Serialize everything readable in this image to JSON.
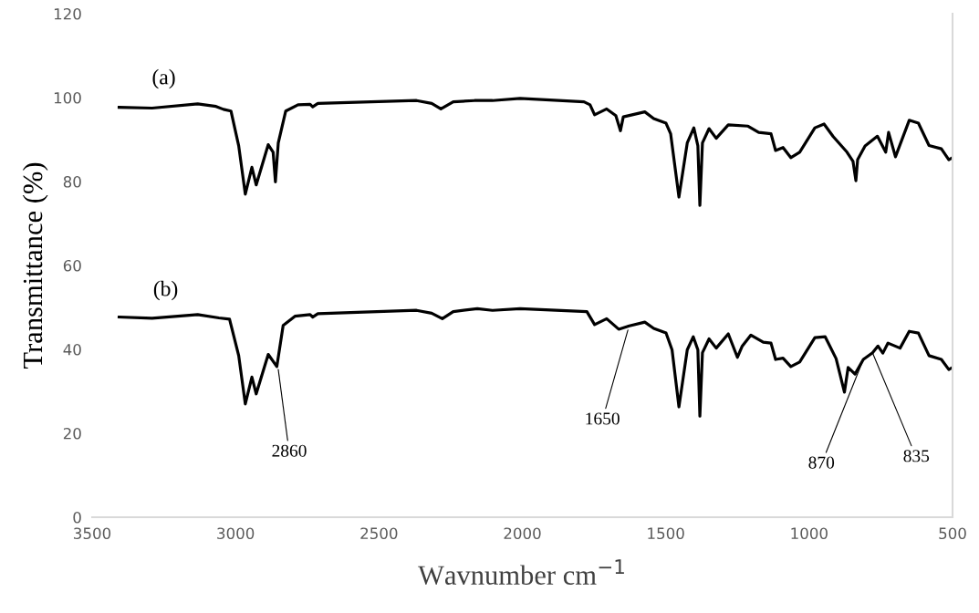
{
  "chart_data": {
    "type": "line",
    "xlabel": "Wavnumber cm$^{−1}$",
    "ylabel": "Transmittance (%)",
    "xlim": [
      3500,
      500
    ],
    "xticks": [
      3500,
      3000,
      2500,
      2000,
      1500,
      1000,
      500
    ],
    "ylim": [
      0,
      120
    ],
    "yticks": [
      0,
      20,
      40,
      60,
      80,
      100,
      120
    ],
    "grid": false,
    "legend": false,
    "marker": "none",
    "line_style": "solid",
    "series": [
      {
        "name": "(a)",
        "color": "#000000",
        "x": [
          3406,
          3291,
          3132,
          3068,
          3042,
          3016,
          2989,
          2966,
          2943,
          2928,
          2886,
          2869,
          2861,
          2851,
          2825,
          2782,
          2740,
          2731,
          2713,
          2369,
          2316,
          2284,
          2241,
          2167,
          2104,
          2008,
          1785,
          1764,
          1748,
          1706,
          1674,
          1658,
          1648,
          1573,
          1542,
          1499,
          1483,
          1454,
          1425,
          1402,
          1388,
          1381,
          1372,
          1349,
          1324,
          1282,
          1213,
          1176,
          1133,
          1117,
          1091,
          1064,
          1033,
          980,
          948,
          916,
          868,
          847,
          837,
          831,
          805,
          762,
          733,
          723,
          699,
          651,
          619,
          582,
          539,
          513,
          500
        ],
        "values": [
          97.7,
          97.5,
          98.5,
          97.9,
          97.2,
          96.8,
          88.5,
          77.0,
          83.4,
          79.2,
          88.8,
          87.0,
          79.9,
          89.2,
          96.8,
          98.3,
          98.4,
          97.8,
          98.6,
          99.3,
          98.6,
          97.3,
          99.0,
          99.3,
          99.3,
          99.8,
          99.0,
          98.3,
          95.9,
          97.3,
          95.7,
          92.1,
          95.4,
          96.6,
          95.0,
          93.9,
          91.4,
          76.3,
          89.2,
          92.8,
          88.5,
          74.3,
          89.2,
          92.6,
          90.3,
          93.5,
          93.2,
          91.7,
          91.4,
          87.4,
          88.1,
          85.7,
          87.0,
          92.8,
          93.7,
          90.7,
          87.0,
          84.8,
          80.2,
          85.2,
          88.5,
          90.8,
          87.0,
          91.7,
          85.9,
          94.6,
          93.9,
          88.6,
          87.8,
          85.2,
          85.7
        ]
      },
      {
        "name": "(b)",
        "color": "#000000",
        "x": [
          3406,
          3291,
          3132,
          3058,
          3021,
          2989,
          2966,
          2943,
          2928,
          2886,
          2856,
          2834,
          2793,
          2740,
          2731,
          2713,
          2369,
          2316,
          2279,
          2241,
          2157,
          2104,
          2008,
          1775,
          1748,
          1706,
          1664,
          1627,
          1573,
          1542,
          1499,
          1478,
          1454,
          1425,
          1404,
          1388,
          1381,
          1372,
          1349,
          1324,
          1282,
          1250,
          1234,
          1203,
          1160,
          1133,
          1117,
          1091,
          1064,
          1033,
          980,
          944,
          906,
          877,
          864,
          840,
          811,
          779,
          760,
          743,
          725,
          683,
          651,
          619,
          582,
          539,
          513,
          500
        ],
        "values": [
          47.7,
          47.4,
          48.3,
          47.5,
          47.2,
          38.5,
          27.0,
          33.4,
          29.4,
          38.8,
          35.9,
          45.7,
          47.9,
          48.3,
          47.7,
          48.5,
          49.3,
          48.6,
          47.3,
          49.0,
          49.7,
          49.3,
          49.7,
          49.0,
          45.9,
          47.3,
          44.8,
          45.6,
          46.5,
          45.0,
          43.9,
          39.9,
          26.3,
          39.9,
          43.0,
          39.9,
          24.1,
          39.2,
          42.5,
          40.3,
          43.7,
          38.1,
          40.7,
          43.4,
          41.7,
          41.5,
          37.6,
          37.9,
          35.9,
          37.0,
          42.8,
          43.0,
          37.8,
          29.8,
          35.7,
          34.1,
          37.6,
          39.2,
          40.8,
          39.1,
          41.5,
          40.3,
          44.3,
          43.9,
          38.5,
          37.6,
          35.2,
          35.7
        ]
      }
    ],
    "annotations": [
      {
        "text": "2860",
        "x": 2851,
        "y": 35.2
      },
      {
        "text": "1650",
        "x": 1632,
        "y": 44.6
      },
      {
        "text": "870",
        "x": 811,
        "y": 37.6
      },
      {
        "text": "835",
        "x": 779,
        "y": 39.2
      }
    ]
  }
}
